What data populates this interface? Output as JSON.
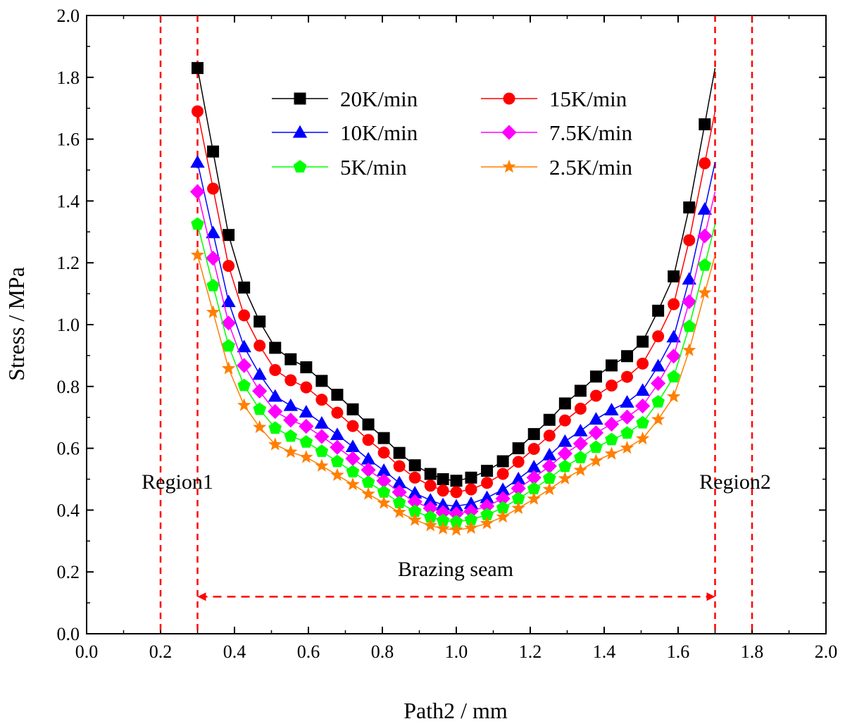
{
  "chart_data": {
    "type": "line",
    "title": "",
    "xlabel": "Path2 / mm",
    "ylabel": "Stress / MPa",
    "xlim": [
      0.0,
      2.0
    ],
    "ylim": [
      0.0,
      2.0
    ],
    "xticks": [
      0.0,
      0.2,
      0.4,
      0.6,
      0.8,
      1.0,
      1.2,
      1.4,
      1.6,
      1.8,
      2.0
    ],
    "yticks": [
      0.0,
      0.2,
      0.4,
      0.6,
      0.8,
      1.0,
      1.2,
      1.4,
      1.6,
      1.8,
      2.0
    ],
    "xtick_labels": [
      "0.0",
      "0.2",
      "0.4",
      "0.6",
      "0.8",
      "1.0",
      "1.2",
      "1.4",
      "1.6",
      "1.8",
      "2.0"
    ],
    "ytick_labels": [
      "0.0",
      "0.2",
      "0.4",
      "0.6",
      "0.8",
      "1.0",
      "1.2",
      "1.4",
      "1.6",
      "1.8",
      "2.0"
    ],
    "grid": false,
    "legend_position": "top-center",
    "x": [
      0.3,
      0.342,
      0.384,
      0.426,
      0.468,
      0.51,
      0.552,
      0.594,
      0.636,
      0.678,
      0.72,
      0.762,
      0.804,
      0.846,
      0.888,
      0.93,
      0.964,
      1.0,
      1.04,
      1.083,
      1.126,
      1.168,
      1.21,
      1.252,
      1.294,
      1.336,
      1.378,
      1.42,
      1.462,
      1.504,
      1.546,
      1.588,
      1.63,
      1.672
    ],
    "series": [
      {
        "name": "20K/min",
        "marker": "square",
        "color": "#000000",
        "values": [
          1.83,
          1.56,
          1.29,
          1.12,
          1.01,
          0.925,
          0.888,
          0.862,
          0.818,
          0.773,
          0.726,
          0.677,
          0.633,
          0.585,
          0.545,
          0.517,
          0.5,
          0.495,
          0.505,
          0.527,
          0.558,
          0.6,
          0.646,
          0.692,
          0.745,
          0.786,
          0.832,
          0.868,
          0.898,
          0.945,
          1.045,
          1.156,
          1.379,
          1.648
        ],
        "end": 1.83
      },
      {
        "name": "15K/min",
        "marker": "circle",
        "color": "#ff0000",
        "values": [
          1.69,
          1.44,
          1.19,
          1.03,
          0.932,
          0.853,
          0.82,
          0.797,
          0.757,
          0.715,
          0.672,
          0.627,
          0.586,
          0.542,
          0.505,
          0.479,
          0.463,
          0.458,
          0.467,
          0.488,
          0.517,
          0.556,
          0.598,
          0.641,
          0.69,
          0.728,
          0.77,
          0.803,
          0.831,
          0.874,
          0.962,
          1.066,
          1.273,
          1.522
        ],
        "end": 1.69
      },
      {
        "name": "10K/min",
        "marker": "triangle",
        "color": "#0000ff",
        "values": [
          1.525,
          1.297,
          1.074,
          0.928,
          0.839,
          0.768,
          0.738,
          0.717,
          0.681,
          0.644,
          0.605,
          0.565,
          0.528,
          0.488,
          0.455,
          0.432,
          0.417,
          0.413,
          0.421,
          0.44,
          0.466,
          0.501,
          0.539,
          0.578,
          0.622,
          0.656,
          0.694,
          0.724,
          0.749,
          0.787,
          0.866,
          0.96,
          1.147,
          1.373
        ],
        "end": 1.525
      },
      {
        "name": "7.5K/min",
        "marker": "diamond",
        "color": "#ff00ff",
        "values": [
          1.43,
          1.215,
          1.005,
          0.868,
          0.785,
          0.719,
          0.691,
          0.671,
          0.638,
          0.603,
          0.567,
          0.53,
          0.495,
          0.458,
          0.427,
          0.406,
          0.392,
          0.388,
          0.396,
          0.413,
          0.437,
          0.47,
          0.505,
          0.542,
          0.583,
          0.615,
          0.65,
          0.678,
          0.701,
          0.737,
          0.81,
          0.898,
          1.074,
          1.287
        ],
        "end": 1.43
      },
      {
        "name": "5K/min",
        "marker": "pentagon",
        "color": "#00ff00",
        "values": [
          1.325,
          1.126,
          0.931,
          0.803,
          0.726,
          0.665,
          0.639,
          0.62,
          0.59,
          0.557,
          0.524,
          0.49,
          0.458,
          0.424,
          0.396,
          0.377,
          0.366,
          0.362,
          0.369,
          0.385,
          0.407,
          0.437,
          0.469,
          0.503,
          0.541,
          0.57,
          0.603,
          0.628,
          0.649,
          0.682,
          0.75,
          0.831,
          0.994,
          1.192
        ],
        "end": 1.325
      },
      {
        "name": "2.5K/min",
        "marker": "star",
        "color": "#ff7f00",
        "values": [
          1.225,
          1.04,
          0.858,
          0.739,
          0.668,
          0.612,
          0.588,
          0.571,
          0.543,
          0.513,
          0.483,
          0.452,
          0.423,
          0.393,
          0.368,
          0.35,
          0.34,
          0.336,
          0.342,
          0.357,
          0.378,
          0.406,
          0.436,
          0.467,
          0.502,
          0.529,
          0.559,
          0.582,
          0.601,
          0.631,
          0.693,
          0.767,
          0.917,
          1.103
        ],
        "end": 1.225
      }
    ],
    "vlines": [
      0.2,
      0.3,
      1.7,
      1.8
    ],
    "annotations": {
      "region1": "Region1",
      "region2": "Region2",
      "seam": "Brazing seam",
      "seam_range": [
        0.3,
        1.7
      ]
    },
    "colors": {
      "guide": "#ff0000",
      "axis": "#000000"
    }
  }
}
